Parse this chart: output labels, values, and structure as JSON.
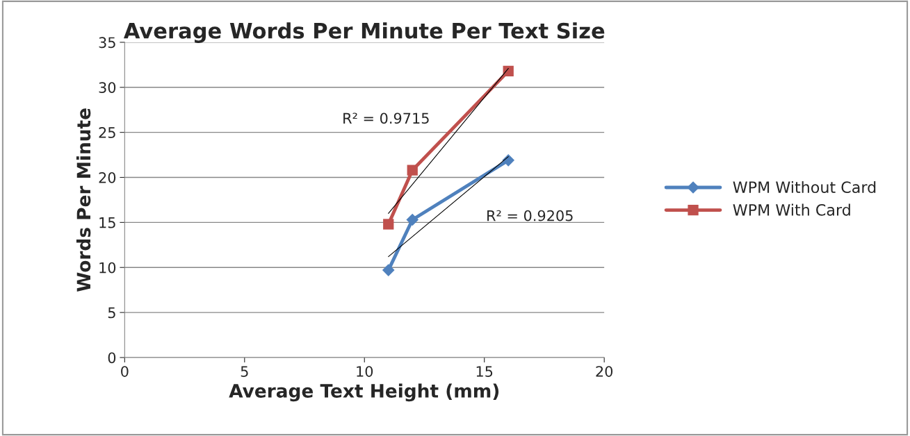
{
  "chart_data": {
    "type": "line",
    "title": "Average Words Per Minute Per Text Size",
    "xlabel": "Average Text Height (mm)",
    "ylabel": "Words Per Minute",
    "series": [
      {
        "name": "WPM Without Card",
        "color": "#4f81bd",
        "x": [
          11,
          12,
          16
        ],
        "values": [
          9.7,
          15.3,
          21.9
        ],
        "marker": "diamond"
      },
      {
        "name": "WPM With Card",
        "color": "#c0504d",
        "x": [
          11,
          12,
          16
        ],
        "values": [
          14.8,
          20.8,
          31.8
        ],
        "marker": "square"
      },
      {
        "color": "#000000",
        "x": [
          11,
          16
        ],
        "values": [
          11.2,
          22.3
        ],
        "marker": "none"
      },
      {
        "color": "#000000",
        "x": [
          11,
          16
        ],
        "values": [
          16.0,
          32.1
        ],
        "marker": "none"
      }
    ],
    "annotations": [
      "R² = 0.9715",
      "R² = 0.9205"
    ],
    "xlim": [
      0,
      20
    ],
    "xticks": [
      0,
      5,
      10,
      15,
      20
    ],
    "ylim": [
      0,
      35
    ],
    "yticks": [
      0,
      5,
      10,
      15,
      20,
      25,
      30,
      35
    ],
    "grid": "y",
    "legend": "right"
  }
}
